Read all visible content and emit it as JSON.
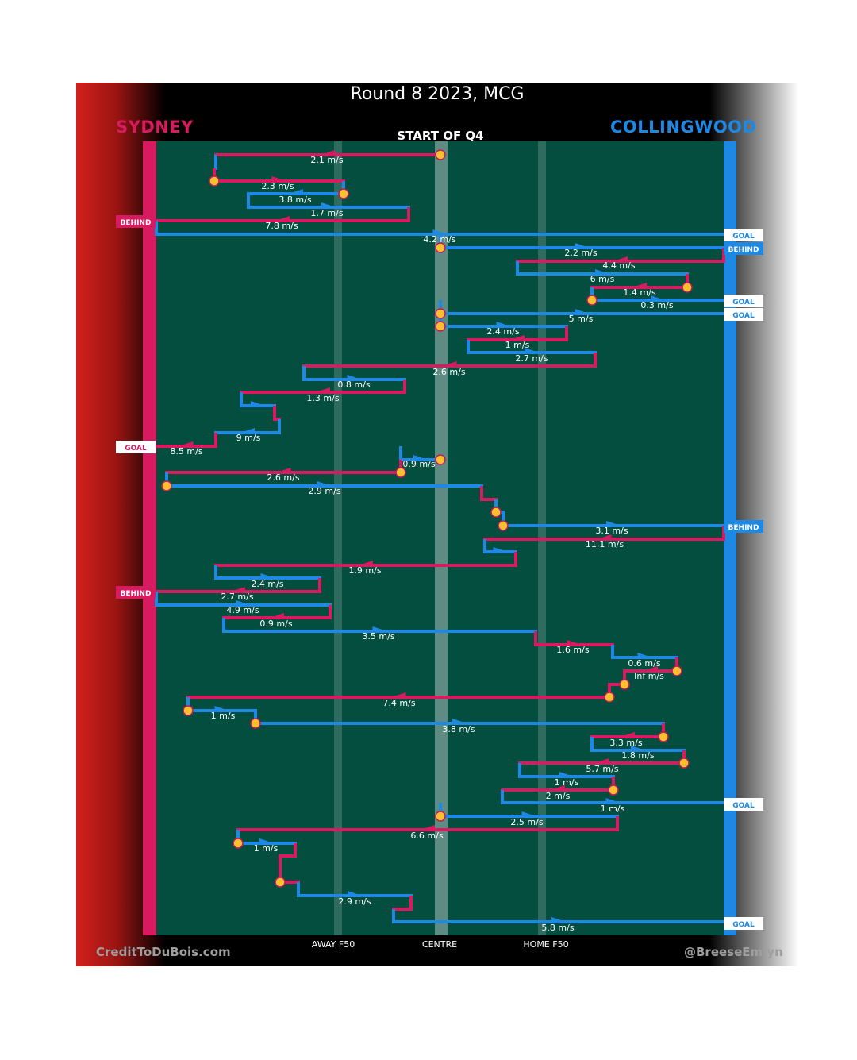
{
  "title": "Round 8 2023, MCG",
  "subtitle": "START OF Q4",
  "teams": {
    "left": {
      "name": "SYDNEY",
      "color": "#d81b60"
    },
    "right": {
      "name": "COLLINGWOOD",
      "color": "#1e88e5"
    }
  },
  "credits": {
    "left": "CreditToDuBois.com",
    "right": "@BreeseEmlyn"
  },
  "chart_data": {
    "type": "line",
    "x_axis_labels": [
      "AWAY F50",
      "CENTRE",
      "HOME F50"
    ],
    "colors": {
      "sydney": "#d81b60",
      "collingwood": "#1e88e5",
      "field": "#044e40",
      "event_marker": "#fbc02d"
    },
    "score_events": [
      {
        "label": "BEHIND",
        "side": "left"
      },
      {
        "label": "GOAL",
        "side": "right"
      },
      {
        "label": "BEHIND",
        "side": "right"
      },
      {
        "label": "GOAL",
        "side": "right"
      },
      {
        "label": "GOAL",
        "side": "right"
      },
      {
        "label": "GOAL",
        "side": "left"
      },
      {
        "label": "BEHIND",
        "side": "right"
      },
      {
        "label": "BEHIND",
        "side": "left"
      },
      {
        "label": "GOAL",
        "side": "right"
      },
      {
        "label": "GOAL",
        "side": "right"
      }
    ],
    "speed_labels": [
      "2.1 m/s",
      "2.3 m/s",
      "3.8 m/s",
      "1.7 m/s",
      "7.8 m/s",
      "4.2 m/s",
      "2.2 m/s",
      "4.4 m/s",
      "6 m/s",
      "1.4 m/s",
      "0.3 m/s",
      "5 m/s",
      "2.4 m/s",
      "1 m/s",
      "2.7 m/s",
      "2.6 m/s",
      "0.8 m/s",
      "1.3 m/s",
      "9 m/s",
      "8.5 m/s",
      "0.9 m/s",
      "2.6 m/s",
      "2.9 m/s",
      "3.1 m/s",
      "11.1 m/s",
      "1.9 m/s",
      "2.4 m/s",
      "2.7 m/s",
      "4.9 m/s",
      "0.9 m/s",
      "3.5 m/s",
      "1.6 m/s",
      "0.6 m/s",
      "Inf m/s",
      "7.4 m/s",
      "1 m/s",
      "3.8 m/s",
      "3.3 m/s",
      "1.8 m/s",
      "5.7 m/s",
      "1 m/s",
      "2 m/s",
      "1 m/s",
      "2.5 m/s",
      "6.6 m/s",
      "1 m/s",
      "2.9 m/s",
      "5.8 m/s"
    ]
  }
}
